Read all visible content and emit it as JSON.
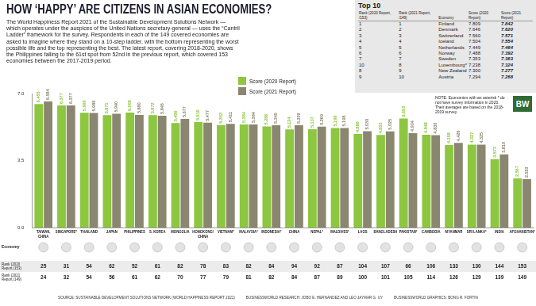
{
  "chart_data": {
    "type": "bar",
    "title": "HOW ‘HAPPY’ ARE CITIZENS IN ASIAN ECONOMIES?",
    "subtitle": "The World Happiness Report 2021 of the Sustainable Development Solutions Network — which operates under the auspices of the United Nations secretary-general — uses the “Cantril Ladder” framework for the survey. Respondents in each of the 149 covered economies are asked to imagine where they stand on a 10-step ladder, with the bottom representing the worst possible life and the top representing the best. The latest report, covering 2018-2020, shows the Philippines falling to the 61st spot from 52nd in the previous report, which covered 153 economies between the 2017-2019 period.",
    "categories": [
      "TAIWAN, CHINA",
      "SINGAPORE*",
      "THAILAND",
      "JAPAN",
      "PHILIPPINES",
      "S. KOREA",
      "MONGOLIA",
      "HONGKONG/CHINA",
      "VIETNAM*",
      "MALAYSIA*",
      "INDONESIA*",
      "CHINA",
      "NEPAL*",
      "MALDIVES*",
      "LAOS",
      "BANGLADESH",
      "PAKISTAN*",
      "CAMBODIA",
      "MYANMAR",
      "SRI LANKA*",
      "INDIA",
      "AFGHANISTAN*"
    ],
    "series": [
      {
        "name": "Score (2020 Report)",
        "color": "#8dc63f",
        "values": [
          6.455,
          6.377,
          5.999,
          5.871,
          6.006,
          5.872,
          5.456,
          5.51,
          5.353,
          5.384,
          5.286,
          5.124,
          5.137,
          5.198,
          4.889,
          4.833,
          5.693,
          4.848,
          4.308,
          4.327,
          3.573,
          2.567
        ],
        "value_labels": [
          "6.455",
          "6.377",
          "5.999",
          "5.871",
          "6.006",
          "5.872",
          "5.456",
          "5.510",
          "5.353",
          "5.384",
          "5.286",
          "5.124",
          "5.137",
          "5.198",
          "4.889",
          "4.833",
          "5.693",
          "4.848",
          "4.308",
          "4.327",
          "3.573",
          "2.567"
        ]
      },
      {
        "name": "Score (2021 Report)",
        "color": "#8b8670",
        "values": [
          6.584,
          6.377,
          5.985,
          5.94,
          5.88,
          5.845,
          5.677,
          5.477,
          5.411,
          5.384,
          5.345,
          5.339,
          5.269,
          5.198,
          5.03,
          5.025,
          4.934,
          4.83,
          4.426,
          4.325,
          3.819,
          2.523
        ],
        "value_labels": [
          "6.584",
          "6.377",
          "5.985",
          "5.940",
          "5.880",
          "5.845",
          "5.677",
          "5.477",
          "5.411",
          "5.384",
          "5.345",
          "5.339",
          "5.269",
          "5.198",
          "5.030",
          "5.025",
          "4.934",
          "4.830",
          "4.426",
          "4.325",
          "3.819",
          "2.523"
        ]
      }
    ],
    "ylim": [
      0,
      7
    ],
    "yticks": [
      {
        "value": 0,
        "label": "0.0"
      },
      3.5,
      {
        "value": 7,
        "label": "7.0"
      }
    ],
    "grid": false,
    "legend": "top",
    "data_labels": true,
    "economy_label": "Economy",
    "rank_rows": [
      {
        "name": "Rank (2020 Report,/153)",
        "values": [
          25,
          31,
          54,
          62,
          52,
          61,
          82,
          78,
          83,
          82,
          84,
          94,
          92,
          87,
          104,
          107,
          66,
          106,
          133,
          130,
          144,
          153
        ]
      },
      {
        "name": "Rank (2021 Report,/149)",
        "values": [
          24,
          32,
          54,
          56,
          61,
          62,
          70,
          77,
          79,
          81,
          82,
          84,
          87,
          89,
          100,
          101,
          105,
          114,
          126,
          129,
          139,
          149
        ]
      }
    ],
    "top10": {
      "title": "Top 10",
      "header": [
        "Rank (2020 Report, /153)",
        "Rank (2021 Report, /149)",
        "Economy",
        "Score (2020 Report)",
        "Score (2021 Report)"
      ],
      "rows": [
        [
          "1",
          "1",
          "Finland",
          "7.809",
          "7.842"
        ],
        [
          "2",
          "2",
          "Denmark",
          "7.646",
          "7.620"
        ],
        [
          "3",
          "3",
          "Switzerland",
          "7.560",
          "7.571"
        ],
        [
          "4",
          "4",
          "Iceland",
          "7.504",
          "7.554"
        ],
        [
          "5",
          "5",
          "Netherlands",
          "7.449",
          "7.464"
        ],
        [
          "6",
          "6",
          "Norway",
          "7.488",
          "7.392"
        ],
        [
          "7",
          "7",
          "Sweden",
          "7.353",
          "7.363"
        ],
        [
          "10",
          "8",
          "Luxembourg*",
          "7.238",
          "7.324"
        ],
        [
          "8",
          "9",
          "New Zealand",
          "7.300",
          "7.277"
        ],
        [
          "9",
          "10",
          "Austria",
          "7.294",
          "7.268"
        ]
      ]
    },
    "note": "NOTE: Economies with an asterisk * do not have survey information in 2020. Their averages are based on the 2018-2019 survey.",
    "logo": "BW",
    "credits": [
      "SOURCE: SUSTAINABLE DEVELOPMENT SOLUTIONS NETWORK (WORLD HAPPINESS REPORT 2021)",
      "BUSINESSWORLD RESEARCH: JOBO E. HERNANDEZ AND LEO JAYMAR G. UY",
      "BUSINESSWORLD GRAPHICS: BONG R. FORTIN"
    ]
  }
}
